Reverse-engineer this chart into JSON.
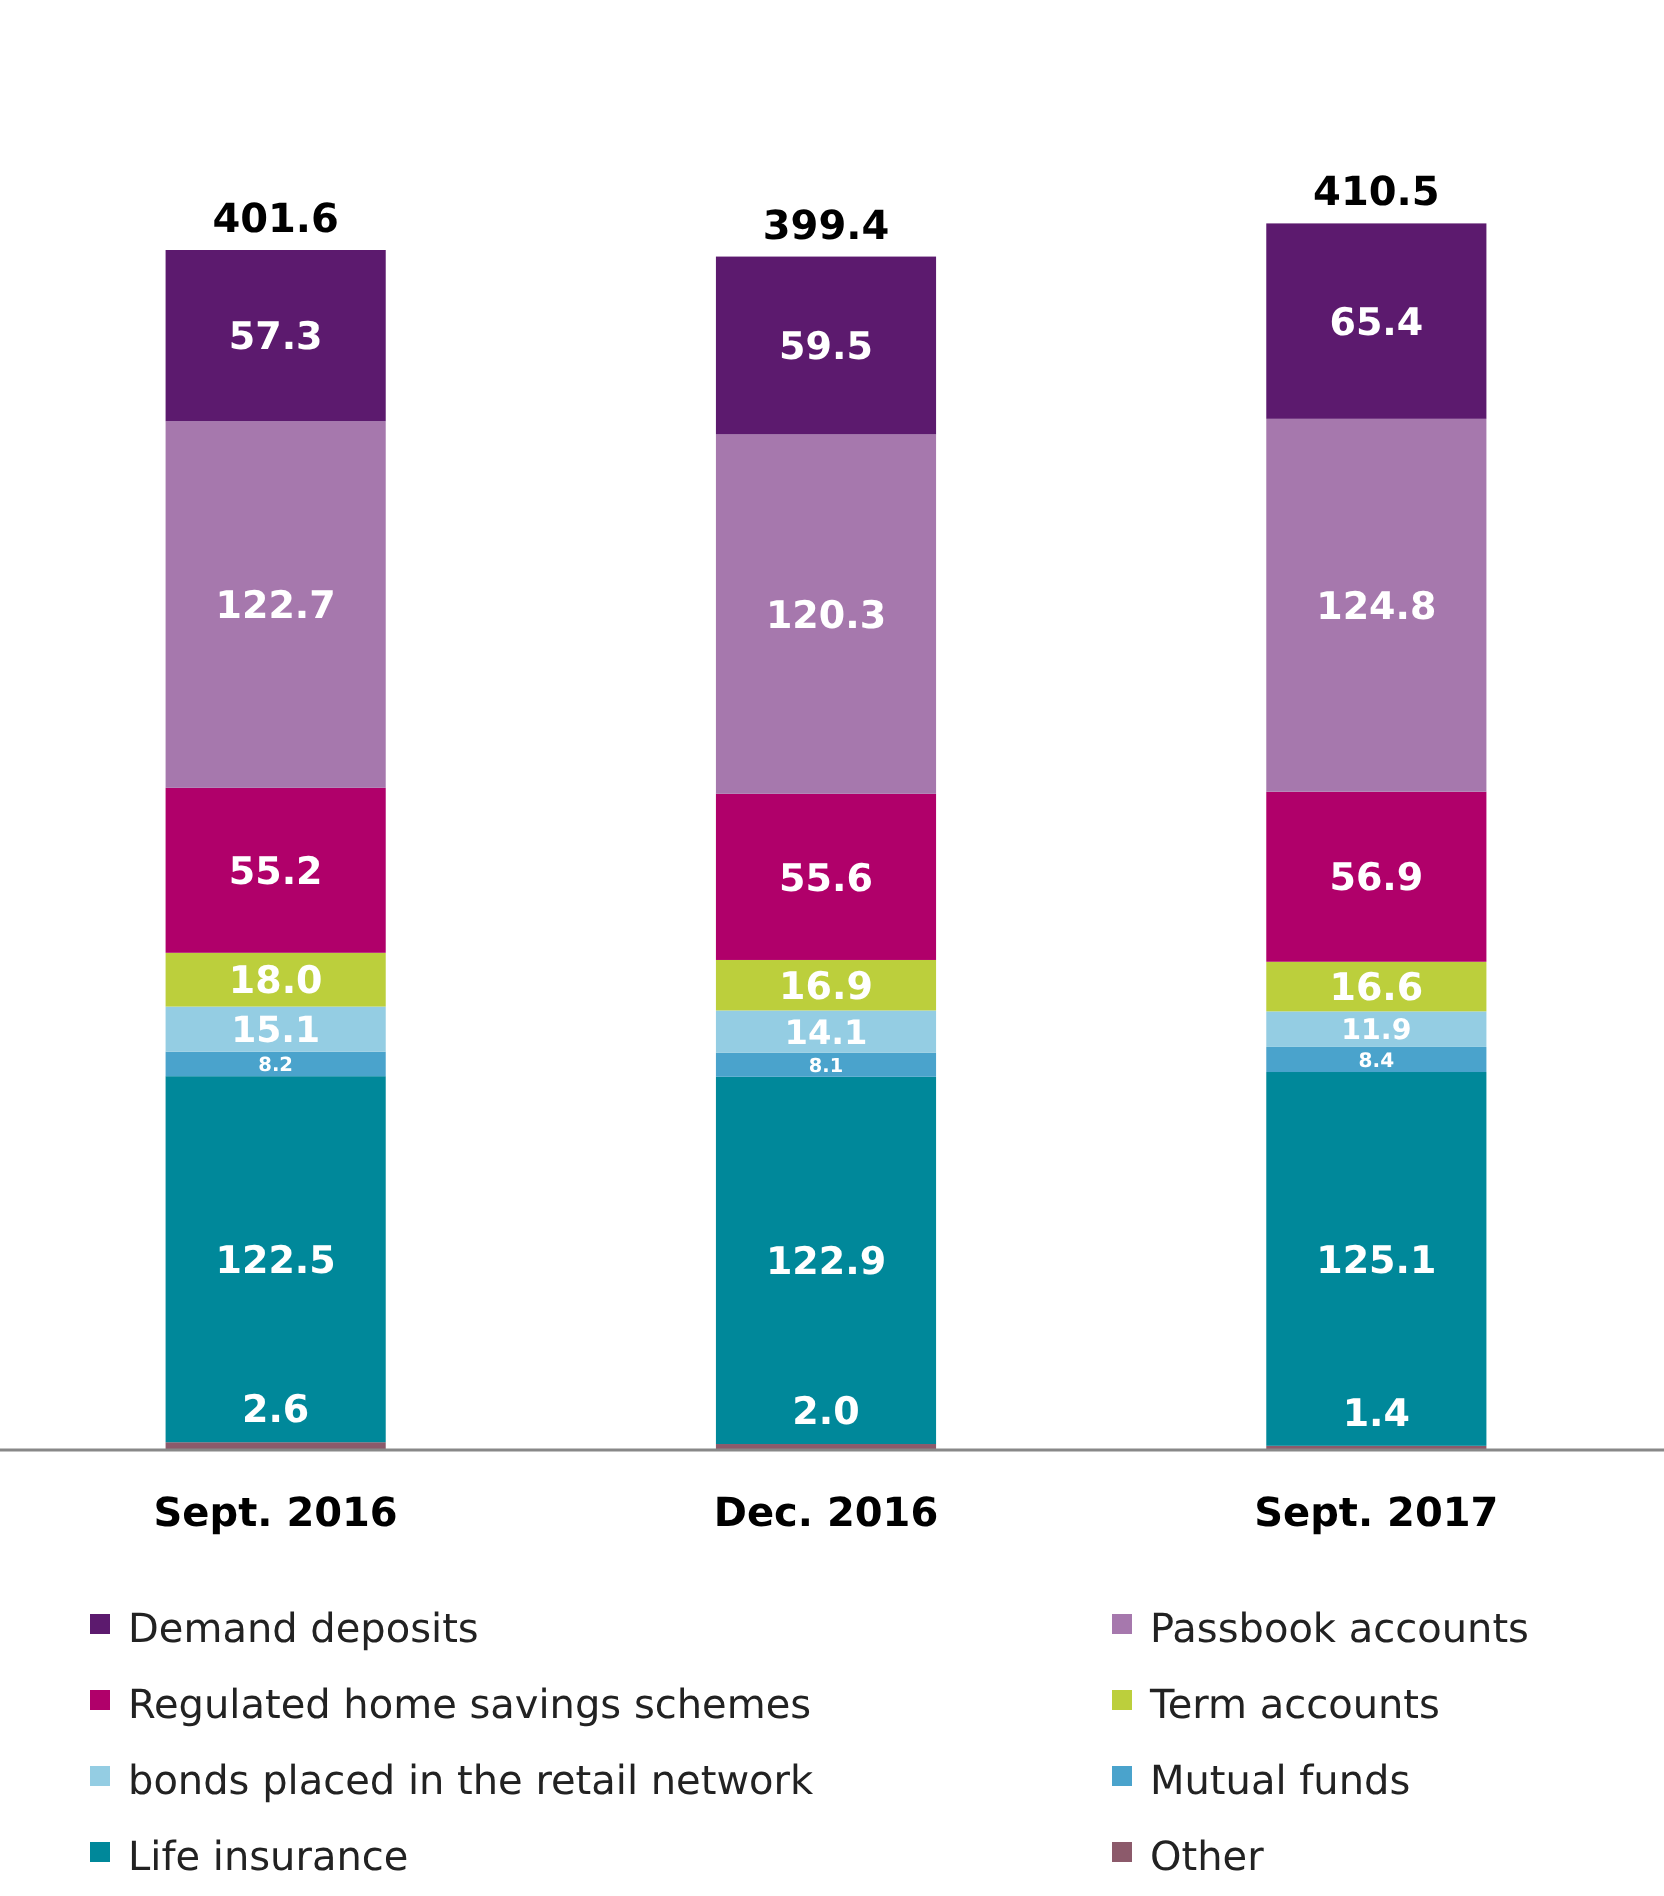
{
  "chart_data": {
    "type": "bar",
    "stacked": true,
    "legend": "bottom",
    "categories": [
      "Sept. 2016",
      "Dec. 2016",
      "Sept. 2017"
    ],
    "series": [
      {
        "name": "Other",
        "color": "#8c5a6b",
        "values": [
          2.6,
          2.0,
          1.4
        ],
        "value_labels": [
          "2.6",
          "2.0",
          "1.4"
        ]
      },
      {
        "name": "Life insurance",
        "color": "#00889a",
        "values": [
          122.5,
          122.9,
          125.1
        ],
        "value_labels": [
          "122.5",
          "122.9",
          "125.1"
        ]
      },
      {
        "name": "Mutual funds",
        "color": "#4aa3cc",
        "values": [
          8.2,
          8.1,
          8.4
        ],
        "value_labels": [
          "8.2",
          "8.1",
          "8.4"
        ]
      },
      {
        "name": "bonds placed in the retail network",
        "color": "#94cde3",
        "values": [
          15.1,
          14.1,
          11.9
        ],
        "value_labels": [
          "15.1",
          "14.1",
          "11.9"
        ]
      },
      {
        "name": "Term accounts",
        "color": "#bccf3c",
        "values": [
          18.0,
          16.9,
          16.6
        ],
        "value_labels": [
          "18.0",
          "16.9",
          "16.6"
        ]
      },
      {
        "name": "Regulated home savings schemes",
        "color": "#b0006a",
        "values": [
          55.2,
          55.6,
          56.9
        ],
        "value_labels": [
          "55.2",
          "55.6",
          "56.9"
        ]
      },
      {
        "name": "Passbook accounts",
        "color": "#a678ad",
        "values": [
          122.7,
          120.3,
          124.8
        ],
        "value_labels": [
          "122.7",
          "120.3",
          "124.8"
        ]
      },
      {
        "name": "Demand deposits",
        "color": "#5c1a6e",
        "values": [
          57.3,
          59.5,
          65.4
        ],
        "value_labels": [
          "57.3",
          "59.5",
          "65.4"
        ]
      }
    ],
    "totals": [
      "401.6",
      "399.4",
      "410.5"
    ]
  }
}
